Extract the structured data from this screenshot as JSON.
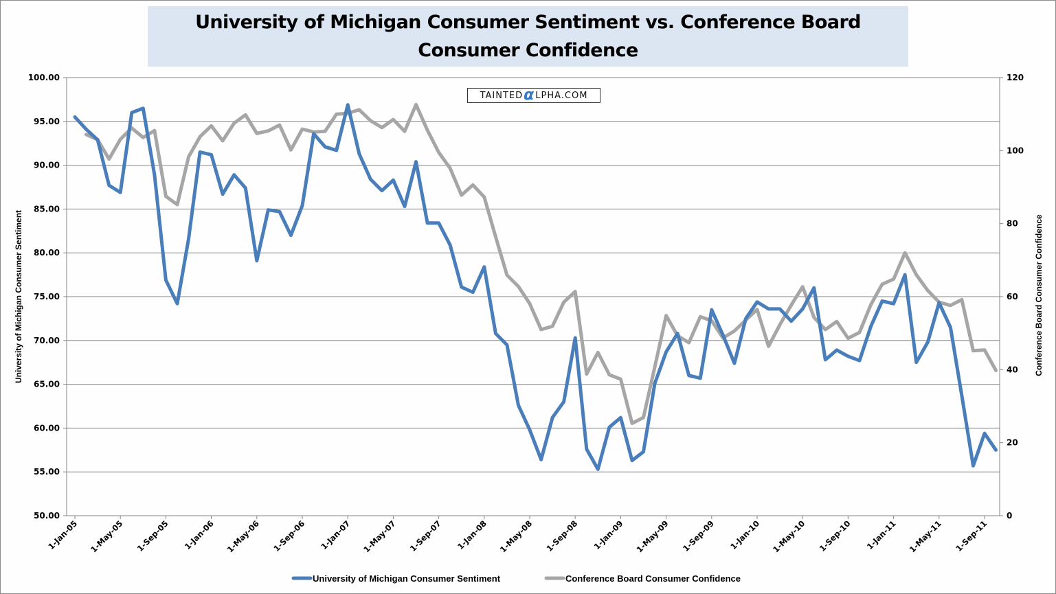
{
  "chart_data": {
    "type": "line",
    "title": "University of Michigan Consumer Sentiment vs. Conference Board Consumer Confidence",
    "watermark": {
      "prefix": "Tainted",
      "alpha": "α",
      "suffix": "lpha.com"
    },
    "xlabel": "",
    "ylabel": "University of Michigan Consumer Sentiment",
    "y2label": "Conference Board Consumer Confidence",
    "ylim": [
      50,
      100
    ],
    "y2lim": [
      0,
      120
    ],
    "yticks": [
      "100.00",
      "95.00",
      "90.00",
      "85.00",
      "80.00",
      "75.00",
      "70.00",
      "65.00",
      "60.00",
      "55.00",
      "50.00"
    ],
    "y2ticks": [
      "120",
      "100",
      "80",
      "60",
      "40",
      "20",
      "0"
    ],
    "xticks": [
      "1-Jan-05",
      "1-May-05",
      "1-Sep-05",
      "1-Jan-06",
      "1-May-06",
      "1-Sep-06",
      "1-Jan-07",
      "1-May-07",
      "1-Sep-07",
      "1-Jan-08",
      "1-May-08",
      "1-Sep-08",
      "1-Jan-09",
      "1-May-09",
      "1-Sep-09",
      "1-Jan-10",
      "1-May-10",
      "1-Sep-10",
      "1-Jan-11",
      "1-May-11",
      "1-Sep-11"
    ],
    "x_start": "Jan-05",
    "x_frequency": "monthly",
    "grid": true,
    "legend_position": "bottom",
    "colors": {
      "umich": "#4a7ebb",
      "cb": "#a6a6a6",
      "grid": "#868686"
    },
    "series": [
      {
        "name": "University of Michigan Consumer Sentiment",
        "axis": "left",
        "start_index": 0,
        "values": [
          95.5,
          94.1,
          92.9,
          87.7,
          86.9,
          96.0,
          96.5,
          88.9,
          76.9,
          74.2,
          81.6,
          91.5,
          91.2,
          86.7,
          88.9,
          87.4,
          79.1,
          84.9,
          84.7,
          82.0,
          85.4,
          93.6,
          92.1,
          91.7,
          96.9,
          91.3,
          88.4,
          87.1,
          88.3,
          85.3,
          90.4,
          83.4,
          83.4,
          80.9,
          76.1,
          75.5,
          78.4,
          70.8,
          69.5,
          62.6,
          59.8,
          56.4,
          61.2,
          63.0,
          70.3,
          57.6,
          55.3,
          60.1,
          61.2,
          56.3,
          57.3,
          65.1,
          68.7,
          70.8,
          66.0,
          65.7,
          73.5,
          70.6,
          67.4,
          72.5,
          74.4,
          73.6,
          73.6,
          72.2,
          73.6,
          76.0,
          67.8,
          68.9,
          68.2,
          67.7,
          71.6,
          74.5,
          74.2,
          77.5,
          67.5,
          69.8,
          74.3,
          71.5,
          63.7,
          55.7,
          59.4,
          57.5
        ]
      },
      {
        "name": "Conference Board Consumer Confidence",
        "axis": "right",
        "start_index": 1,
        "values": [
          104.4,
          103.0,
          97.7,
          103.1,
          106.2,
          103.6,
          105.5,
          87.5,
          85.2,
          98.3,
          103.8,
          106.8,
          102.7,
          107.5,
          109.8,
          104.7,
          105.4,
          107.0,
          100.2,
          105.9,
          105.1,
          105.3,
          110.0,
          110.2,
          111.2,
          108.2,
          106.3,
          108.5,
          105.3,
          112.6,
          105.6,
          99.5,
          95.2,
          87.8,
          90.6,
          87.3,
          76.4,
          65.9,
          62.8,
          58.1,
          51.0,
          51.9,
          58.5,
          61.4,
          38.8,
          44.7,
          38.6,
          37.4,
          25.3,
          26.9,
          40.8,
          54.8,
          49.3,
          47.4,
          54.5,
          53.4,
          48.7,
          50.6,
          53.6,
          56.5,
          46.4,
          52.3,
          57.7,
          62.7,
          54.3,
          51.0,
          53.2,
          48.6,
          50.2,
          57.8,
          63.4,
          64.8,
          72.0,
          66.0,
          61.7,
          58.5,
          57.6,
          59.2,
          45.2,
          45.4,
          39.8
        ]
      }
    ]
  }
}
